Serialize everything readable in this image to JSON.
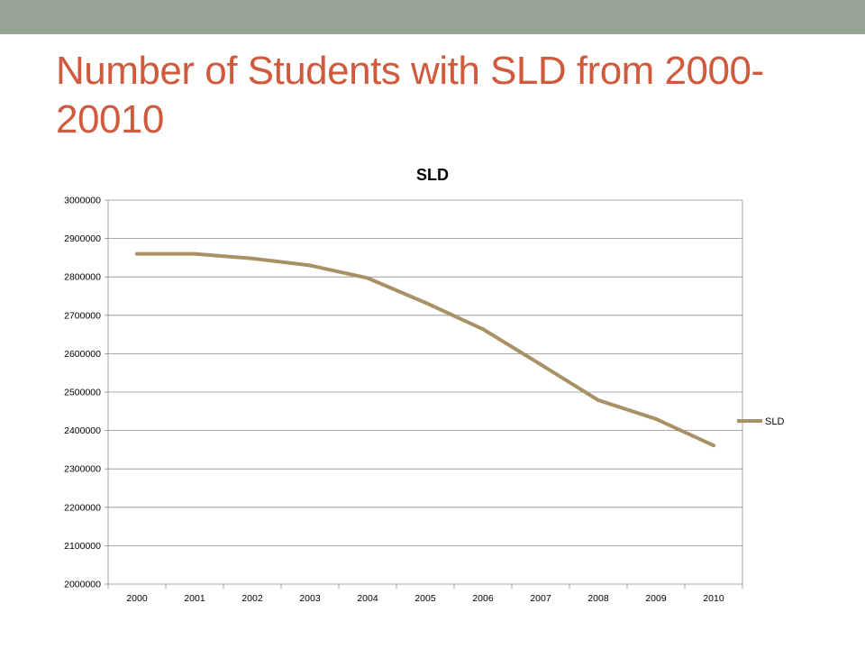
{
  "slide": {
    "title": "Number of Students with SLD from 2000-20010",
    "top_bar_color": "#97a595",
    "title_color": "#d05a3d"
  },
  "chart_data": {
    "type": "line",
    "title": "SLD",
    "xlabel": "",
    "ylabel": "",
    "categories": [
      "2000",
      "2001",
      "2002",
      "2003",
      "2004",
      "2005",
      "2006",
      "2007",
      "2008",
      "2009",
      "2010"
    ],
    "series": [
      {
        "name": "SLD",
        "color": "#a99166",
        "values": [
          2860000,
          2860000,
          2848000,
          2830000,
          2797000,
          2733000,
          2664000,
          2572000,
          2479000,
          2430000,
          2361000
        ]
      }
    ],
    "ylim": [
      2000000,
      3000000
    ],
    "yticks": [
      "2000000",
      "2100000",
      "2200000",
      "2300000",
      "2400000",
      "2500000",
      "2600000",
      "2700000",
      "2800000",
      "2900000",
      "3000000"
    ],
    "grid": "horizontal",
    "legend_position": "right"
  }
}
